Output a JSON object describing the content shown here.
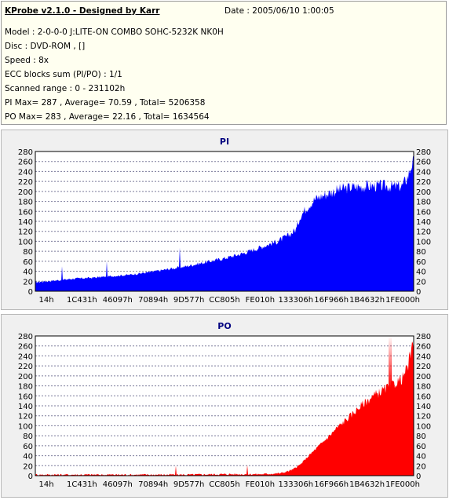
{
  "header": {
    "title": "KProbe v2.1.0 - Designed by Karr",
    "date": "Date : 2005/06/10 1:00:05",
    "model": "Model : 2-0-0-0 J:LITE-ON COMBO SOHC-5232K NK0H",
    "disc": "Disc : DVD-ROM ,  []",
    "speed": "Speed : 8x",
    "ecc": "ECC blocks sum (PI/PO) : 1/1",
    "range": "Scanned range : 0 - 231102h",
    "pi_stats": "PI Max= 287 , Average= 70.59 , Total= 5206358",
    "po_stats": "PO Max= 283 , Average= 22.16 , Total= 1634564"
  },
  "chart_data": [
    {
      "type": "area",
      "title": "PI",
      "color": "#0000ff",
      "ylim": [
        0,
        280
      ],
      "yticks": [
        0,
        20,
        40,
        60,
        80,
        100,
        120,
        140,
        160,
        180,
        200,
        220,
        240,
        260,
        280
      ],
      "xticks": [
        "14h",
        "1C431h",
        "46097h",
        "70894h",
        "9D577h",
        "CC805h",
        "FE010h",
        "133306h",
        "16F966h",
        "1B4632h",
        "1FE000h"
      ],
      "grid": true,
      "x": [
        0,
        0.03,
        0.06,
        0.1,
        0.15,
        0.2,
        0.25,
        0.3,
        0.35,
        0.4,
        0.45,
        0.5,
        0.52,
        0.55,
        0.58,
        0.61,
        0.64,
        0.67,
        0.69,
        0.7,
        0.72,
        0.74,
        0.76,
        0.78,
        0.8,
        0.83,
        0.86,
        0.89,
        0.92,
        0.95,
        0.97,
        0.985,
        0.995,
        1.0
      ],
      "values": [
        18,
        20,
        22,
        25,
        27,
        30,
        33,
        38,
        44,
        50,
        58,
        66,
        70,
        76,
        84,
        92,
        100,
        112,
        125,
        150,
        170,
        185,
        192,
        198,
        203,
        208,
        210,
        211,
        211,
        210,
        211,
        230,
        255,
        260
      ]
    },
    {
      "type": "area",
      "title": "PO",
      "color": "#ff0000",
      "ylim": [
        0,
        280
      ],
      "yticks": [
        0,
        20,
        40,
        60,
        80,
        100,
        120,
        140,
        160,
        180,
        200,
        220,
        240,
        260,
        280
      ],
      "xticks": [
        "14h",
        "1C431h",
        "46097h",
        "70894h",
        "9D577h",
        "CC805h",
        "FE010h",
        "133306h",
        "16F966h",
        "1B4632h",
        "1FE000h"
      ],
      "grid": true,
      "x": [
        0,
        0.1,
        0.2,
        0.3,
        0.4,
        0.5,
        0.6,
        0.65,
        0.68,
        0.7,
        0.72,
        0.75,
        0.78,
        0.8,
        0.83,
        0.86,
        0.89,
        0.92,
        0.95,
        0.97,
        0.985,
        0.995,
        1.0
      ],
      "values": [
        2,
        2,
        2,
        2,
        2,
        3,
        3,
        5,
        12,
        22,
        38,
        60,
        82,
        98,
        118,
        140,
        158,
        172,
        185,
        195,
        220,
        255,
        260
      ]
    }
  ]
}
